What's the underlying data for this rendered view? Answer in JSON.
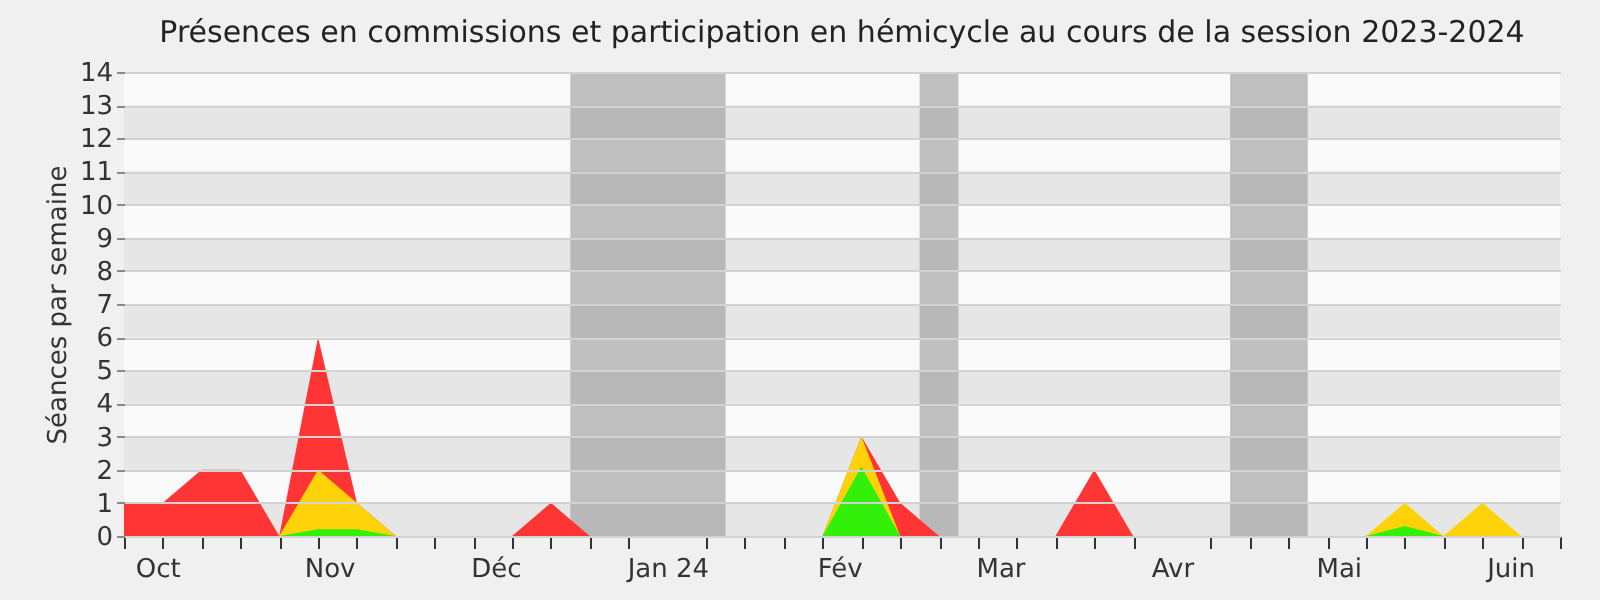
{
  "chart_data": {
    "type": "area",
    "title": "Présences en commissions et participation en hémicycle au cours de la session 2023-2024",
    "ylabel": "Séances par semaine",
    "x": [
      "2023-09-25",
      "2023-10-02",
      "2023-10-09",
      "2023-10-16",
      "2023-10-23",
      "2023-10-30",
      "2023-11-06",
      "2023-11-13",
      "2023-11-20",
      "2023-11-27",
      "2023-12-04",
      "2023-12-11",
      "2023-12-18",
      "2023-12-25",
      "2024-01-01",
      "2024-01-08",
      "2024-01-15",
      "2024-01-22",
      "2024-01-29",
      "2024-02-05",
      "2024-02-12",
      "2024-02-19",
      "2024-02-26",
      "2024-03-04",
      "2024-03-11",
      "2024-03-18",
      "2024-03-25",
      "2024-04-01",
      "2024-04-08",
      "2024-04-15",
      "2024-04-22",
      "2024-04-29",
      "2024-05-06",
      "2024-05-13",
      "2024-05-20",
      "2024-05-27",
      "2024-06-03",
      "2024-06-10"
    ],
    "xlim": [
      "2023-09-25",
      "2024-06-10"
    ],
    "xticks": [
      {
        "value": "2023-09-25",
        "label": null
      },
      {
        "value": "2023-10-01",
        "label": "Oct"
      },
      {
        "value": "2023-10-02",
        "label": null
      },
      {
        "value": "2023-10-09",
        "label": null
      },
      {
        "value": "2023-10-16",
        "label": null
      },
      {
        "value": "2023-10-23",
        "label": null
      },
      {
        "value": "2023-10-30",
        "label": null
      },
      {
        "value": "2023-11-01",
        "label": "Nov"
      },
      {
        "value": "2023-11-06",
        "label": null
      },
      {
        "value": "2023-11-13",
        "label": null
      },
      {
        "value": "2023-11-20",
        "label": null
      },
      {
        "value": "2023-11-27",
        "label": null
      },
      {
        "value": "2023-12-01",
        "label": "Déc"
      },
      {
        "value": "2023-12-04",
        "label": null
      },
      {
        "value": "2023-12-11",
        "label": null
      },
      {
        "value": "2023-12-18",
        "label": null
      },
      {
        "value": "2023-12-25",
        "label": null
      },
      {
        "value": "2024-01-01",
        "label": "Jan 24"
      },
      {
        "value": "2024-01-08",
        "label": null
      },
      {
        "value": "2024-01-15",
        "label": null
      },
      {
        "value": "2024-01-22",
        "label": null
      },
      {
        "value": "2024-01-29",
        "label": null
      },
      {
        "value": "2024-02-01",
        "label": "Fév"
      },
      {
        "value": "2024-02-05",
        "label": null
      },
      {
        "value": "2024-02-12",
        "label": null
      },
      {
        "value": "2024-02-19",
        "label": null
      },
      {
        "value": "2024-02-26",
        "label": null
      },
      {
        "value": "2024-03-01",
        "label": "Mar"
      },
      {
        "value": "2024-03-04",
        "label": null
      },
      {
        "value": "2024-03-11",
        "label": null
      },
      {
        "value": "2024-03-18",
        "label": null
      },
      {
        "value": "2024-03-25",
        "label": null
      },
      {
        "value": "2024-04-01",
        "label": "Avr"
      },
      {
        "value": "2024-04-08",
        "label": null
      },
      {
        "value": "2024-04-15",
        "label": null
      },
      {
        "value": "2024-04-22",
        "label": null
      },
      {
        "value": "2024-04-29",
        "label": null
      },
      {
        "value": "2024-05-01",
        "label": "Mai"
      },
      {
        "value": "2024-05-06",
        "label": null
      },
      {
        "value": "2024-05-13",
        "label": null
      },
      {
        "value": "2024-05-20",
        "label": null
      },
      {
        "value": "2024-05-27",
        "label": null
      },
      {
        "value": "2024-06-01",
        "label": "Juin"
      },
      {
        "value": "2024-06-03",
        "label": null
      },
      {
        "value": "2024-06-10",
        "label": null
      }
    ],
    "ylim": [
      0,
      14
    ],
    "yticks": [
      0,
      1,
      2,
      3,
      4,
      5,
      6,
      7,
      8,
      9,
      10,
      11,
      12,
      13,
      14
    ],
    "grid": "y",
    "series": [
      {
        "color": "#ff3535",
        "values": [
          1,
          1,
          2,
          2,
          0,
          6,
          1,
          0,
          0,
          0,
          0,
          1,
          0,
          0,
          0,
          0,
          0,
          0,
          0,
          3,
          1,
          0,
          0,
          0,
          0,
          2,
          0,
          0,
          0,
          0,
          0,
          0,
          0,
          0,
          0,
          0,
          0,
          0
        ]
      },
      {
        "color": "#ffd20a",
        "values": [
          0,
          0,
          0,
          0,
          0,
          2,
          1,
          0,
          0,
          0,
          0,
          0,
          0,
          0,
          0,
          0,
          0,
          0,
          0,
          3,
          0,
          0,
          0,
          0,
          0,
          0,
          0,
          0,
          0,
          0,
          0,
          0,
          0,
          1,
          0,
          1,
          0,
          0
        ]
      },
      {
        "color": "#33f00a",
        "values": [
          0,
          0,
          0,
          0,
          0,
          0.2,
          0.2,
          0,
          0,
          0,
          0,
          0,
          0,
          0,
          0,
          0,
          0,
          0,
          0,
          2.1,
          0,
          0,
          0,
          0,
          0,
          0,
          0,
          0,
          0,
          0,
          0,
          0,
          0,
          0.3,
          0,
          0,
          0,
          0
        ]
      }
    ],
    "bands": [
      {
        "axis": "x",
        "from": "2023-12-14T12:00",
        "to": "2024-01-11T12:00",
        "color": "#9a9a9a"
      },
      {
        "axis": "x",
        "from": "2024-02-15T12:00",
        "to": "2024-02-22T12:00",
        "color": "#9a9a9a"
      },
      {
        "axis": "x",
        "from": "2024-04-11T12:00",
        "to": "2024-04-25T12:00",
        "color": "#9a9a9a"
      }
    ]
  }
}
